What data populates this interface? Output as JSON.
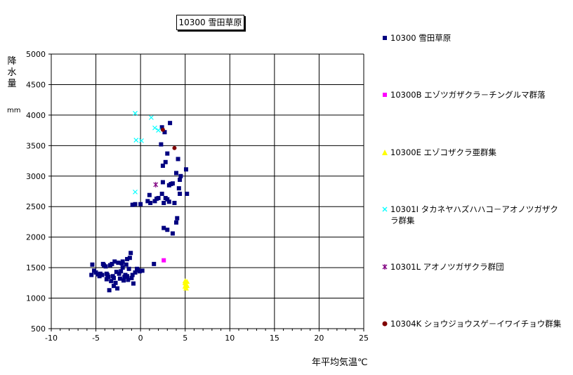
{
  "chart_data": {
    "type": "scatter",
    "title": "10300 雪田草原",
    "xlabel": "年平均気温℃",
    "ylabel": [
      "降",
      "水",
      "量"
    ],
    "yunit": "mm",
    "xlim": [
      -10,
      25
    ],
    "ylim": [
      500,
      5000
    ],
    "xticks": [
      -10,
      -5,
      0,
      5,
      10,
      15,
      20,
      25
    ],
    "xtick_labels": [
      "-10",
      "-5",
      "0",
      "5",
      "10",
      "15",
      "20",
      "25"
    ],
    "yticks": [
      500,
      1000,
      1500,
      2000,
      2500,
      3000,
      3500,
      4000,
      4500,
      5000
    ],
    "ytick_labels": [
      "500",
      "1000",
      "1500",
      "2000",
      "2500",
      "3000",
      "3500",
      "4000",
      "4500",
      "5000"
    ],
    "grid": true,
    "legend_position": "right",
    "series": [
      {
        "name": "10300 雪田草原",
        "marker": "square",
        "color": "#000080",
        "points": [
          [
            -5.4,
            1550
          ],
          [
            -5.5,
            1380
          ],
          [
            -5.2,
            1450
          ],
          [
            -5.0,
            1420
          ],
          [
            -4.8,
            1390
          ],
          [
            -4.6,
            1360
          ],
          [
            -4.5,
            1400
          ],
          [
            -4.3,
            1380
          ],
          [
            -4.2,
            1560
          ],
          [
            -4.1,
            1540
          ],
          [
            -3.9,
            1520
          ],
          [
            -3.8,
            1400
          ],
          [
            -3.7,
            1380
          ],
          [
            -3.6,
            1350
          ],
          [
            -3.5,
            1130
          ],
          [
            -3.4,
            1540
          ],
          [
            -3.3,
            1280
          ],
          [
            -3.2,
            1560
          ],
          [
            -3.1,
            1360
          ],
          [
            -3.0,
            1200
          ],
          [
            -2.9,
            1600
          ],
          [
            -2.8,
            1250
          ],
          [
            -2.7,
            1430
          ],
          [
            -2.6,
            1160
          ],
          [
            -2.5,
            1580
          ],
          [
            -2.4,
            1400
          ],
          [
            -2.3,
            1320
          ],
          [
            -2.2,
            1440
          ],
          [
            -2.1,
            1570
          ],
          [
            -2.0,
            1600
          ],
          [
            -1.9,
            1290
          ],
          [
            -1.8,
            1350
          ],
          [
            -1.7,
            1380
          ],
          [
            -1.6,
            1550
          ],
          [
            -1.5,
            1640
          ],
          [
            -1.4,
            1300
          ],
          [
            -1.3,
            1480
          ],
          [
            -1.2,
            1660
          ],
          [
            -1.1,
            1740
          ],
          [
            -1.0,
            1330
          ],
          [
            -0.9,
            1380
          ],
          [
            -0.8,
            1240
          ],
          [
            -0.6,
            1420
          ],
          [
            -0.4,
            1480
          ],
          [
            -0.3,
            1460
          ],
          [
            -0.1,
            1440
          ],
          [
            0.2,
            1450
          ],
          [
            -3.8,
            1310
          ],
          [
            -3.0,
            1330
          ],
          [
            -2.0,
            1500
          ],
          [
            -4.4,
            1380
          ],
          [
            -1.5,
            1360
          ],
          [
            -0.9,
            2530
          ],
          [
            -0.6,
            2540
          ],
          [
            0.0,
            2540
          ],
          [
            0.8,
            2590
          ],
          [
            1.0,
            2690
          ],
          [
            1.1,
            2560
          ],
          [
            1.6,
            2590
          ],
          [
            1.8,
            2630
          ],
          [
            2.0,
            2640
          ],
          [
            2.4,
            2710
          ],
          [
            2.5,
            2900
          ],
          [
            2.6,
            2560
          ],
          [
            2.8,
            2640
          ],
          [
            3.0,
            2620
          ],
          [
            3.2,
            2850
          ],
          [
            3.4,
            2870
          ],
          [
            3.6,
            2880
          ],
          [
            3.8,
            2560
          ],
          [
            4.0,
            3050
          ],
          [
            4.4,
            2940
          ],
          [
            4.3,
            2800
          ],
          [
            5.2,
            2710
          ],
          [
            5.1,
            3110
          ],
          [
            4.2,
            3280
          ],
          [
            3.0,
            3370
          ],
          [
            2.8,
            3230
          ],
          [
            2.5,
            3170
          ],
          [
            2.3,
            3520
          ],
          [
            2.4,
            3800
          ],
          [
            2.7,
            3720
          ],
          [
            3.3,
            3870
          ],
          [
            4.5,
            3000
          ],
          [
            4.4,
            2710
          ],
          [
            4.0,
            2240
          ],
          [
            4.1,
            2310
          ],
          [
            3.0,
            2120
          ],
          [
            3.6,
            2060
          ],
          [
            2.6,
            2150
          ],
          [
            1.5,
            1560
          ],
          [
            3.2,
            2580
          ]
        ]
      },
      {
        "name": "10300B エゾツガザクラ－チングルマ群落",
        "marker": "square",
        "color": "#ff00ff",
        "points": [
          [
            2.6,
            1620
          ]
        ]
      },
      {
        "name": "10300E エゾコザクラ亜群集",
        "marker": "triangle",
        "color": "#ffff00",
        "points": [
          [
            5.0,
            1190
          ],
          [
            5.1,
            1230
          ],
          [
            5.0,
            1280
          ],
          [
            5.2,
            1200
          ],
          [
            5.1,
            1160
          ],
          [
            5.0,
            1250
          ],
          [
            5.2,
            1270
          ]
        ]
      },
      {
        "name": "10301I タカネヤハズハハコ－アオノツガザクラ群集",
        "marker": "x",
        "color": "#00ffff",
        "points": [
          [
            -0.6,
            4030
          ],
          [
            1.2,
            3960
          ],
          [
            1.6,
            3790
          ],
          [
            -0.5,
            3590
          ],
          [
            0.1,
            3580
          ],
          [
            -0.6,
            2740
          ],
          [
            2.0,
            3750
          ]
        ]
      },
      {
        "name": "10301L アオノツガザクラ群団",
        "marker": "star",
        "color": "#800080",
        "points": [
          [
            1.7,
            2860
          ]
        ]
      },
      {
        "name": "10304K ショウジョウスゲ－イワイチョウ群集",
        "marker": "circle",
        "color": "#800000",
        "points": [
          [
            2.5,
            3760
          ],
          [
            3.8,
            3460
          ]
        ]
      }
    ]
  }
}
